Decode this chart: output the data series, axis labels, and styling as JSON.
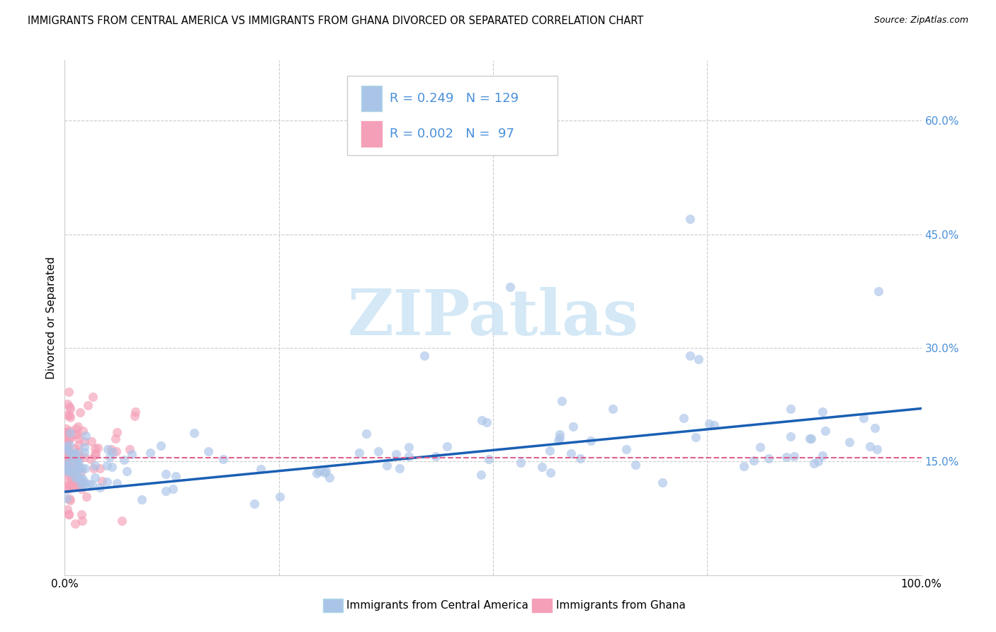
{
  "title": "IMMIGRANTS FROM CENTRAL AMERICA VS IMMIGRANTS FROM GHANA DIVORCED OR SEPARATED CORRELATION CHART",
  "source": "Source: ZipAtlas.com",
  "label_blue": "Immigrants from Central America",
  "label_pink": "Immigrants from Ghana",
  "ylabel": "Divorced or Separated",
  "blue_R": "0.249",
  "blue_N": "129",
  "pink_R": "0.002",
  "pink_N": "97",
  "xlim": [
    0.0,
    1.0
  ],
  "ylim": [
    0.0,
    0.68
  ],
  "ytick_vals": [
    0.15,
    0.3,
    0.45,
    0.6
  ],
  "ytick_labels": [
    "15.0%",
    "30.0%",
    "45.0%",
    "60.0%"
  ],
  "xtick_vals": [
    0.0,
    0.25,
    0.5,
    0.75,
    1.0
  ],
  "xtick_labels": [
    "0.0%",
    "",
    "",
    "",
    "100.0%"
  ],
  "blue_face": "#aac4e8",
  "pink_face": "#f4a0b8",
  "blue_line": "#1a5fb4",
  "pink_line": "#e06090",
  "grid_color": "#cccccc",
  "tick_color": "#4a90d9",
  "watermark_text": "ZIPatlas",
  "watermark_color": "#cde4f5",
  "bg_color": "#ffffff",
  "blue_line_start_y": 0.11,
  "blue_line_end_y": 0.22,
  "pink_line_y": 0.155
}
